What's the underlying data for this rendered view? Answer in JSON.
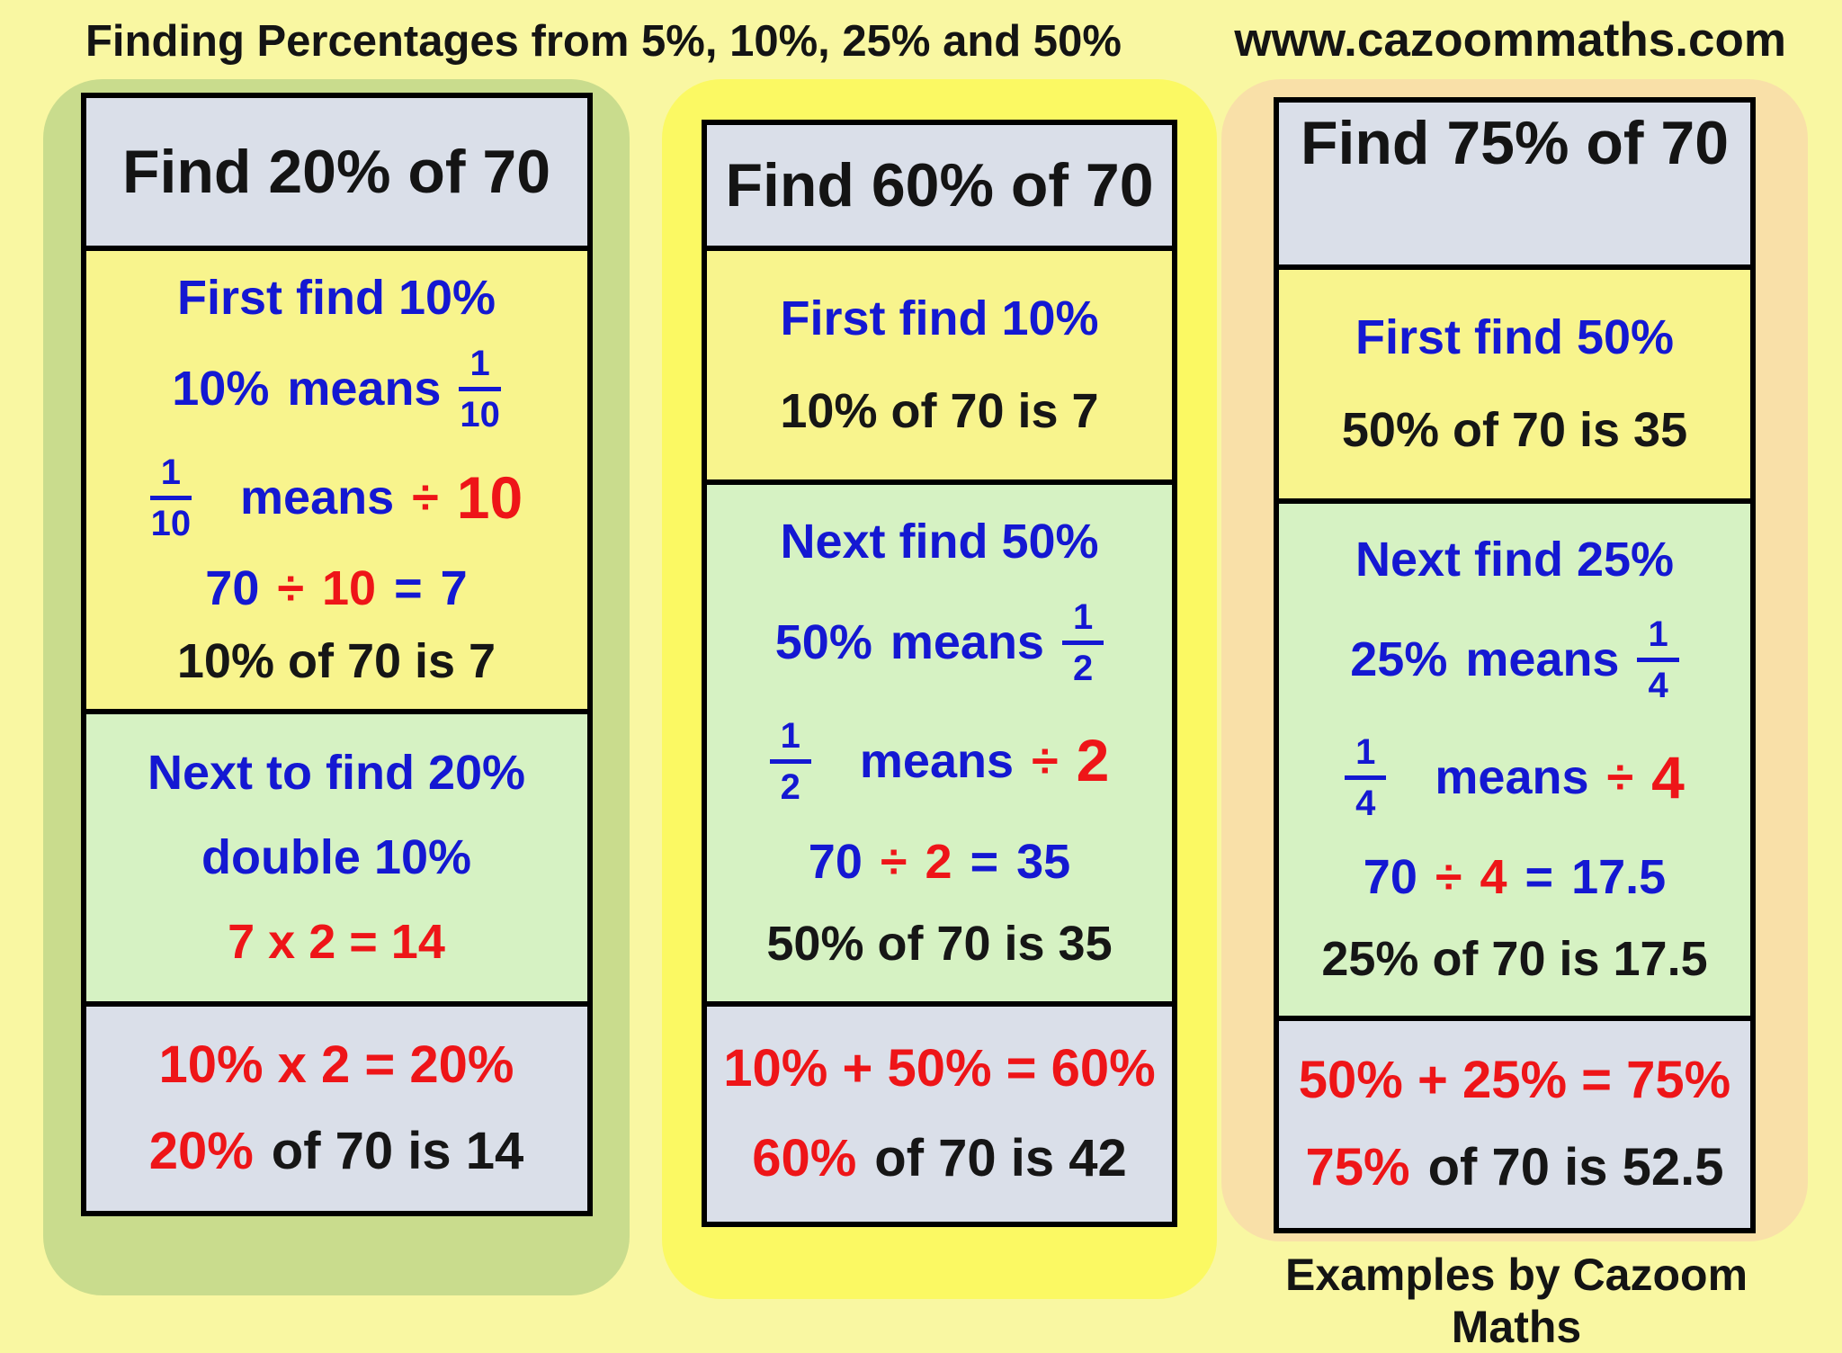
{
  "page": {
    "title": "Finding Percentages from 5%, 10%, 25% and 50%",
    "website": "www.cazoommaths.com",
    "footer": "Examples by Cazoom Maths"
  },
  "colors": {
    "page_bg": "#F9F7A2",
    "card1_bg": "#C9DC8D",
    "card2_bg": "#FBF963",
    "card3_bg": "#F9E0A8",
    "header_section_bg": "#DADFE9",
    "yellow_section_bg": "#F8F48D",
    "green_section_bg": "#D6F2C3",
    "result_section_bg": "#DADFE9",
    "blue_text": "#1418D2",
    "red_text": "#EE1518",
    "black_text": "#141414"
  },
  "card1": {
    "header": "Find 20% of 70",
    "yellow": {
      "line1": "First find 10%",
      "line2": {
        "pre": "10%",
        "verb": "means",
        "num": "1",
        "den": "10"
      },
      "line3": {
        "num": "1",
        "den": "10",
        "verb": "means",
        "op": "÷",
        "value": "10"
      },
      "line4": {
        "n1": "70",
        "op": "÷",
        "n2": "10",
        "eq": "=",
        "result": "7"
      },
      "line5": "10% of 70 is 7"
    },
    "green": {
      "line1": "Next to find 20%",
      "line2": "double 10%",
      "line3": "7 x 2 = 14"
    },
    "blue": {
      "line1": "10%  x 2  = 20%",
      "line2": {
        "highlight": "20%",
        "rest": "of 70 is 14"
      }
    }
  },
  "card2": {
    "header": "Find 60% of 70",
    "yellow": {
      "line1": "First find 10%",
      "line2": "10% of 70 is 7"
    },
    "green": {
      "line1": "Next find 50%",
      "line2": {
        "pre": "50%",
        "verb": "means",
        "num": "1",
        "den": "2"
      },
      "line3": {
        "num": "1",
        "den": "2",
        "verb": "means",
        "op": "÷",
        "value": "2"
      },
      "line4": {
        "n1": "70",
        "op": "÷",
        "n2": "2",
        "eq": "=",
        "result": "35"
      },
      "line5": "50% of 70 is 35"
    },
    "blue": {
      "line1": "10% + 50% = 60%",
      "line2": {
        "highlight": "60%",
        "rest": "of 70 is 42"
      }
    }
  },
  "card3": {
    "header": "Find 75% of 70",
    "yellow": {
      "line1": "First find 50%",
      "line2": "50% of 70 is 35"
    },
    "green": {
      "line1": "Next find 25%",
      "line2": {
        "pre": "25%",
        "verb": "means",
        "num": "1",
        "den": "4"
      },
      "line3": {
        "num": "1",
        "den": "4",
        "verb": "means",
        "op": "÷",
        "value": "4"
      },
      "line4": {
        "n1": "70",
        "op": "÷",
        "n2": "4",
        "eq": "=",
        "result": "17.5"
      },
      "line5": "25% of 70 is 17.5"
    },
    "blue": {
      "line1": "50% + 25% = 75%",
      "line2": {
        "highlight": "75%",
        "rest": "of 70 is 52.5"
      }
    }
  }
}
